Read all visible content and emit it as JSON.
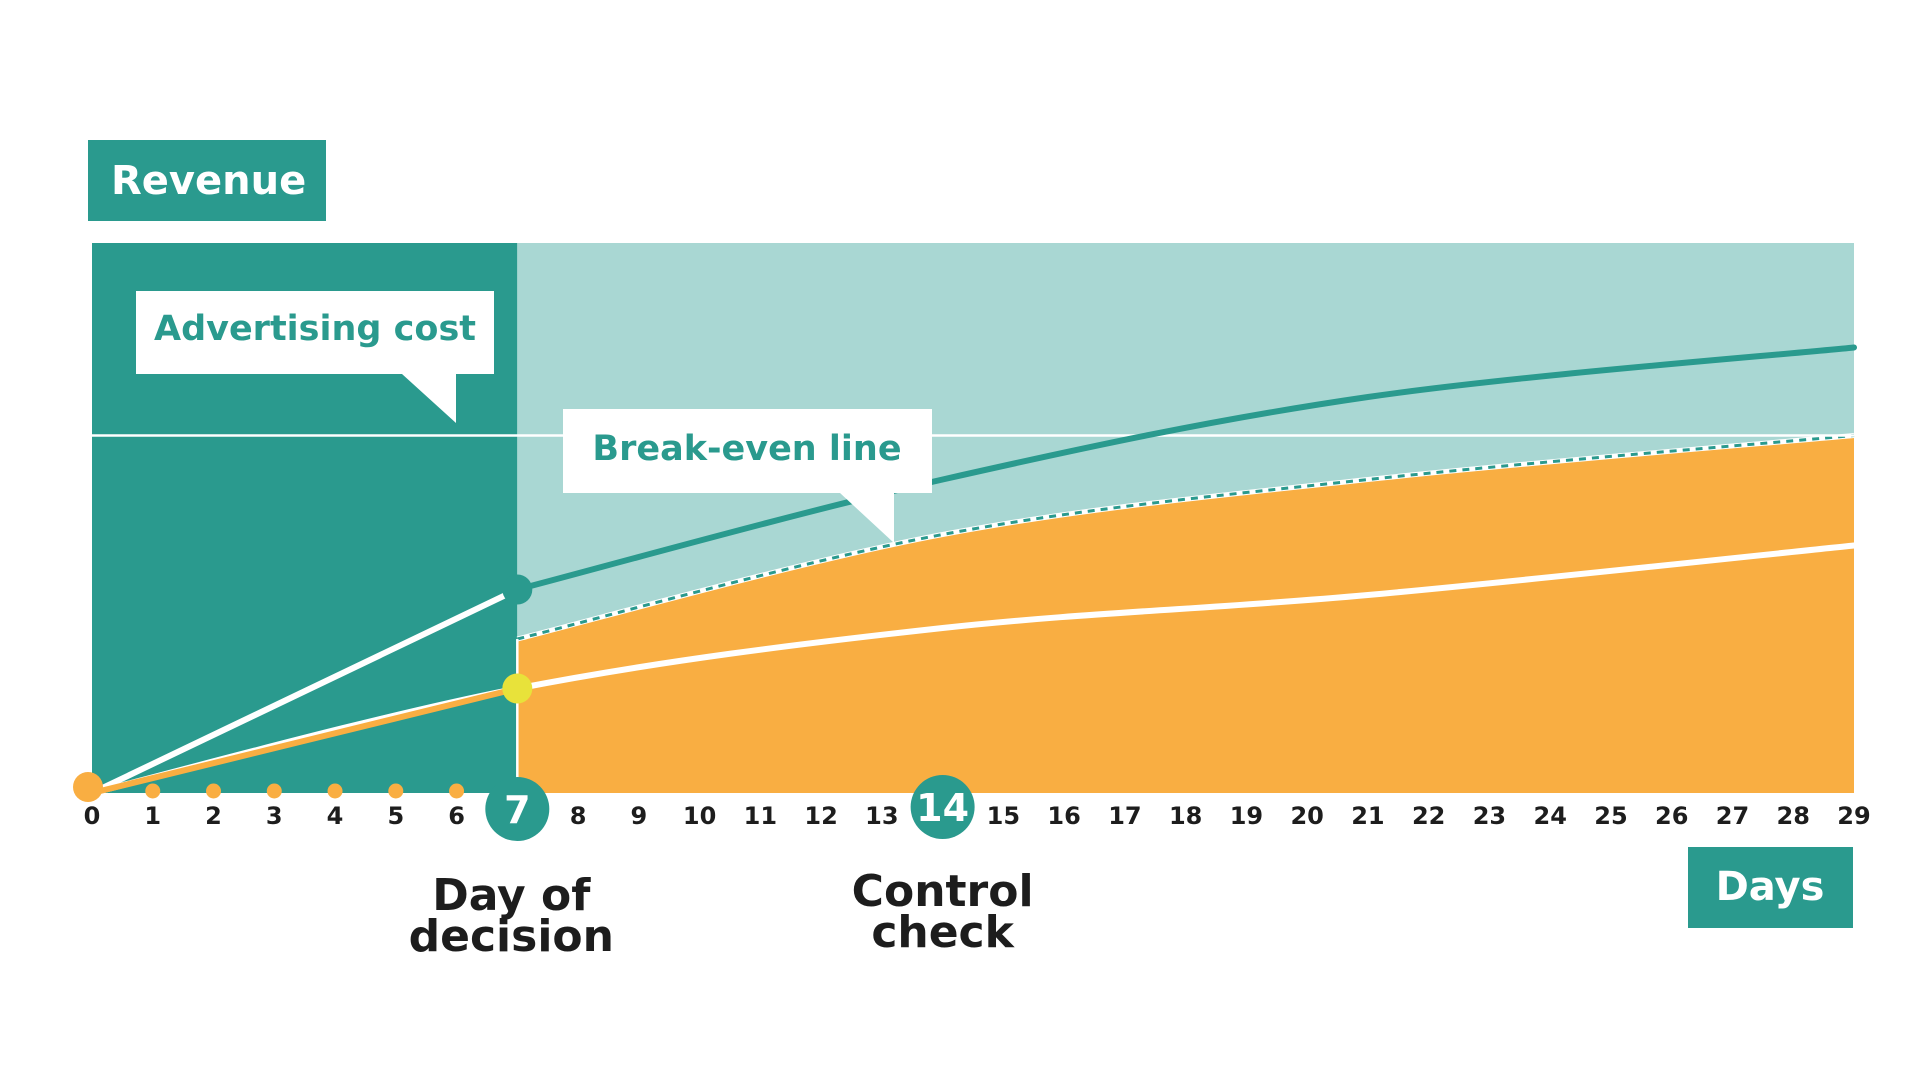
{
  "chart_data": {
    "type": "area",
    "title": "",
    "ylabel": "Revenue",
    "xlabel": "Days",
    "x_ticks": [
      "0",
      "1",
      "2",
      "3",
      "4",
      "5",
      "6",
      "7",
      "8",
      "9",
      "10",
      "11",
      "12",
      "13",
      "14",
      "15",
      "16",
      "17",
      "18",
      "19",
      "20",
      "21",
      "22",
      "23",
      "24",
      "25",
      "26",
      "27",
      "28",
      "29"
    ],
    "xlim": [
      0,
      29
    ],
    "ylim": [
      0,
      100
    ],
    "advertising_cost": 65,
    "decision_day": 7,
    "control_day": 14,
    "series": [
      {
        "x": [
          0,
          7,
          14,
          21,
          29
        ],
        "values": [
          0,
          37,
          57,
          72,
          81
        ],
        "style": "teal-line"
      },
      {
        "x": [
          0,
          7,
          14,
          21,
          29
        ],
        "values": [
          0,
          28,
          47,
          57,
          65
        ],
        "style": "dashed-teal"
      },
      {
        "x": [
          0,
          7,
          14,
          21,
          29
        ],
        "values": [
          0,
          19,
          30,
          36,
          45
        ],
        "style": "white-line"
      },
      {
        "x": [
          0,
          7
        ],
        "values": [
          0,
          19
        ],
        "style": "orange-line"
      }
    ],
    "annotations": {
      "advertising_cost": "Advertising cost",
      "break_even": "Break-even line",
      "decision_badge": "7",
      "control_badge": "14",
      "decision_label": [
        "Day of",
        "decision"
      ],
      "control_label": [
        "Control",
        "check"
      ]
    }
  },
  "colors": {
    "teal": "#2a9a8e",
    "light_teal": "#a9d7d3",
    "orange": "#f9ae42",
    "yellow": "#e8e23a",
    "white": "#ffffff",
    "text_dark": "#1d1d1d"
  }
}
